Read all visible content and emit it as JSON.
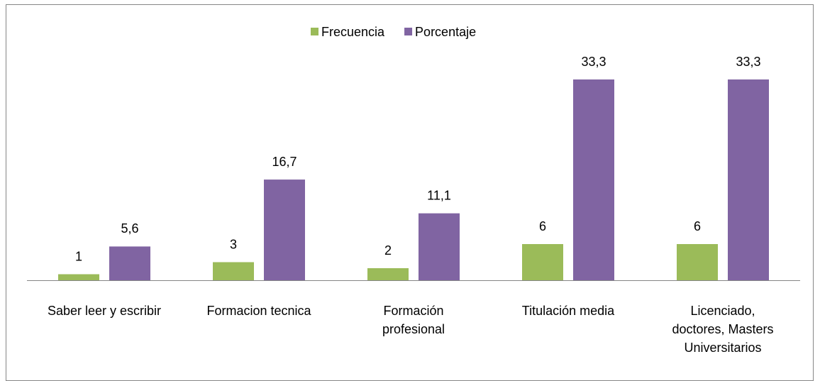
{
  "chart_data": {
    "type": "bar",
    "categories": [
      "Saber leer y escribir",
      "Formacion tecnica",
      "Formación profesional",
      "Titulación media",
      "Licenciado, doctores, Masters Universitarios"
    ],
    "series": [
      {
        "name": "Frecuencia",
        "color": "#9bbb59",
        "values": [
          1,
          3,
          2,
          6,
          6
        ]
      },
      {
        "name": "Porcentaje",
        "color": "#8064a2",
        "values": [
          5.6,
          16.7,
          11.1,
          33.3,
          33.3
        ],
        "value_labels": [
          "5,6",
          "16,7",
          "11,1",
          "33,3",
          "33,3"
        ]
      }
    ],
    "legend": "top"
  }
}
